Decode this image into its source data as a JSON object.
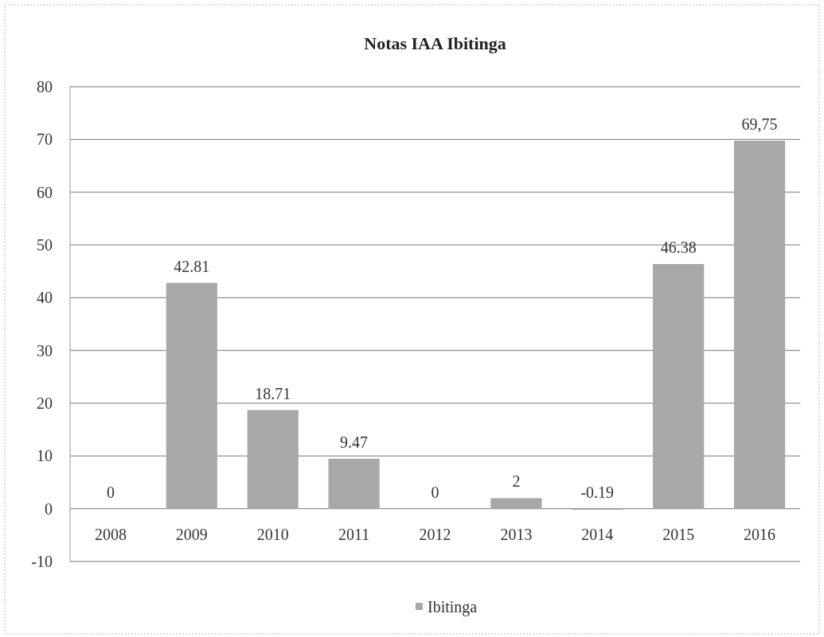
{
  "chart_data": {
    "type": "bar",
    "title": "Notas IAA Ibitinga",
    "categories": [
      "2008",
      "2009",
      "2010",
      "2011",
      "2012",
      "2013",
      "2014",
      "2015",
      "2016"
    ],
    "series": [
      {
        "name": "Ibitinga",
        "color": "#a8a8a8",
        "values": [
          0,
          42.81,
          18.71,
          9.47,
          0,
          2,
          -0.19,
          46.38,
          69.75
        ],
        "value_labels": [
          "0",
          "42.81",
          "18.71",
          "9.47",
          "0",
          "2",
          "-0.19",
          "46.38",
          "69,75"
        ]
      }
    ],
    "ylim": [
      -10,
      80
    ],
    "yticks": [
      -10,
      0,
      10,
      20,
      30,
      40,
      50,
      60,
      70,
      80
    ],
    "grid": "y",
    "legend": "bottom"
  }
}
